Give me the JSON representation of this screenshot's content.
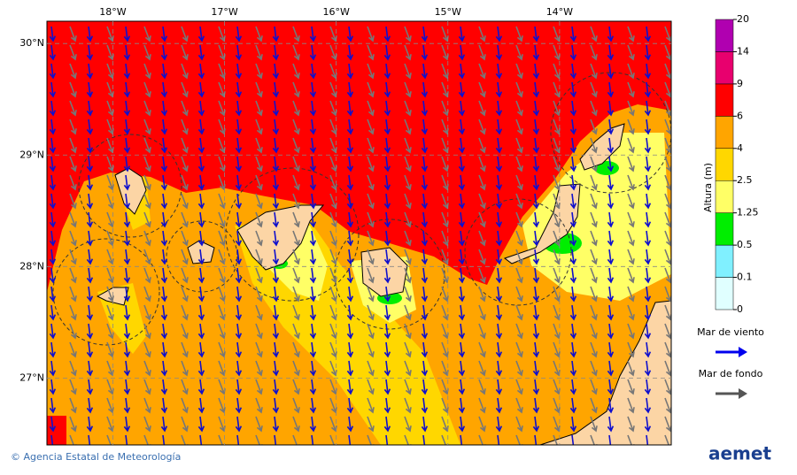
{
  "map": {
    "xlim": [
      -18.59,
      -13.0
    ],
    "ylim": [
      26.4,
      30.2
    ],
    "xticks": [
      {
        "value": -18,
        "label": "18°W"
      },
      {
        "value": -17,
        "label": "17°W"
      },
      {
        "value": -16,
        "label": "16°W"
      },
      {
        "value": -15,
        "label": "15°W"
      },
      {
        "value": -14,
        "label": "14°W"
      }
    ],
    "yticks": [
      {
        "value": 30,
        "label": "30°N"
      },
      {
        "value": 29,
        "label": "29°N"
      },
      {
        "value": 28,
        "label": "28°N"
      },
      {
        "value": 27,
        "label": "27°N"
      }
    ]
  },
  "colorbar": {
    "title": "Altura (m)",
    "levels": [
      0,
      0.1,
      0.5,
      1.25,
      2.5,
      4,
      6,
      9,
      14,
      20
    ],
    "colors": [
      "#e0ffff",
      "#80f0ff",
      "#00ee00",
      "#ffff66",
      "#ffd700",
      "#ffa500",
      "#ff0000",
      "#e8006e",
      "#b000b0"
    ]
  },
  "legend": [
    {
      "label": "Mar de viento",
      "color": "#0000ee"
    },
    {
      "label": "Mar de fondo",
      "color": "#555555"
    }
  ],
  "footer": {
    "credit": "© Agencia Estatal de Meteorología",
    "logo": "aemet"
  }
}
